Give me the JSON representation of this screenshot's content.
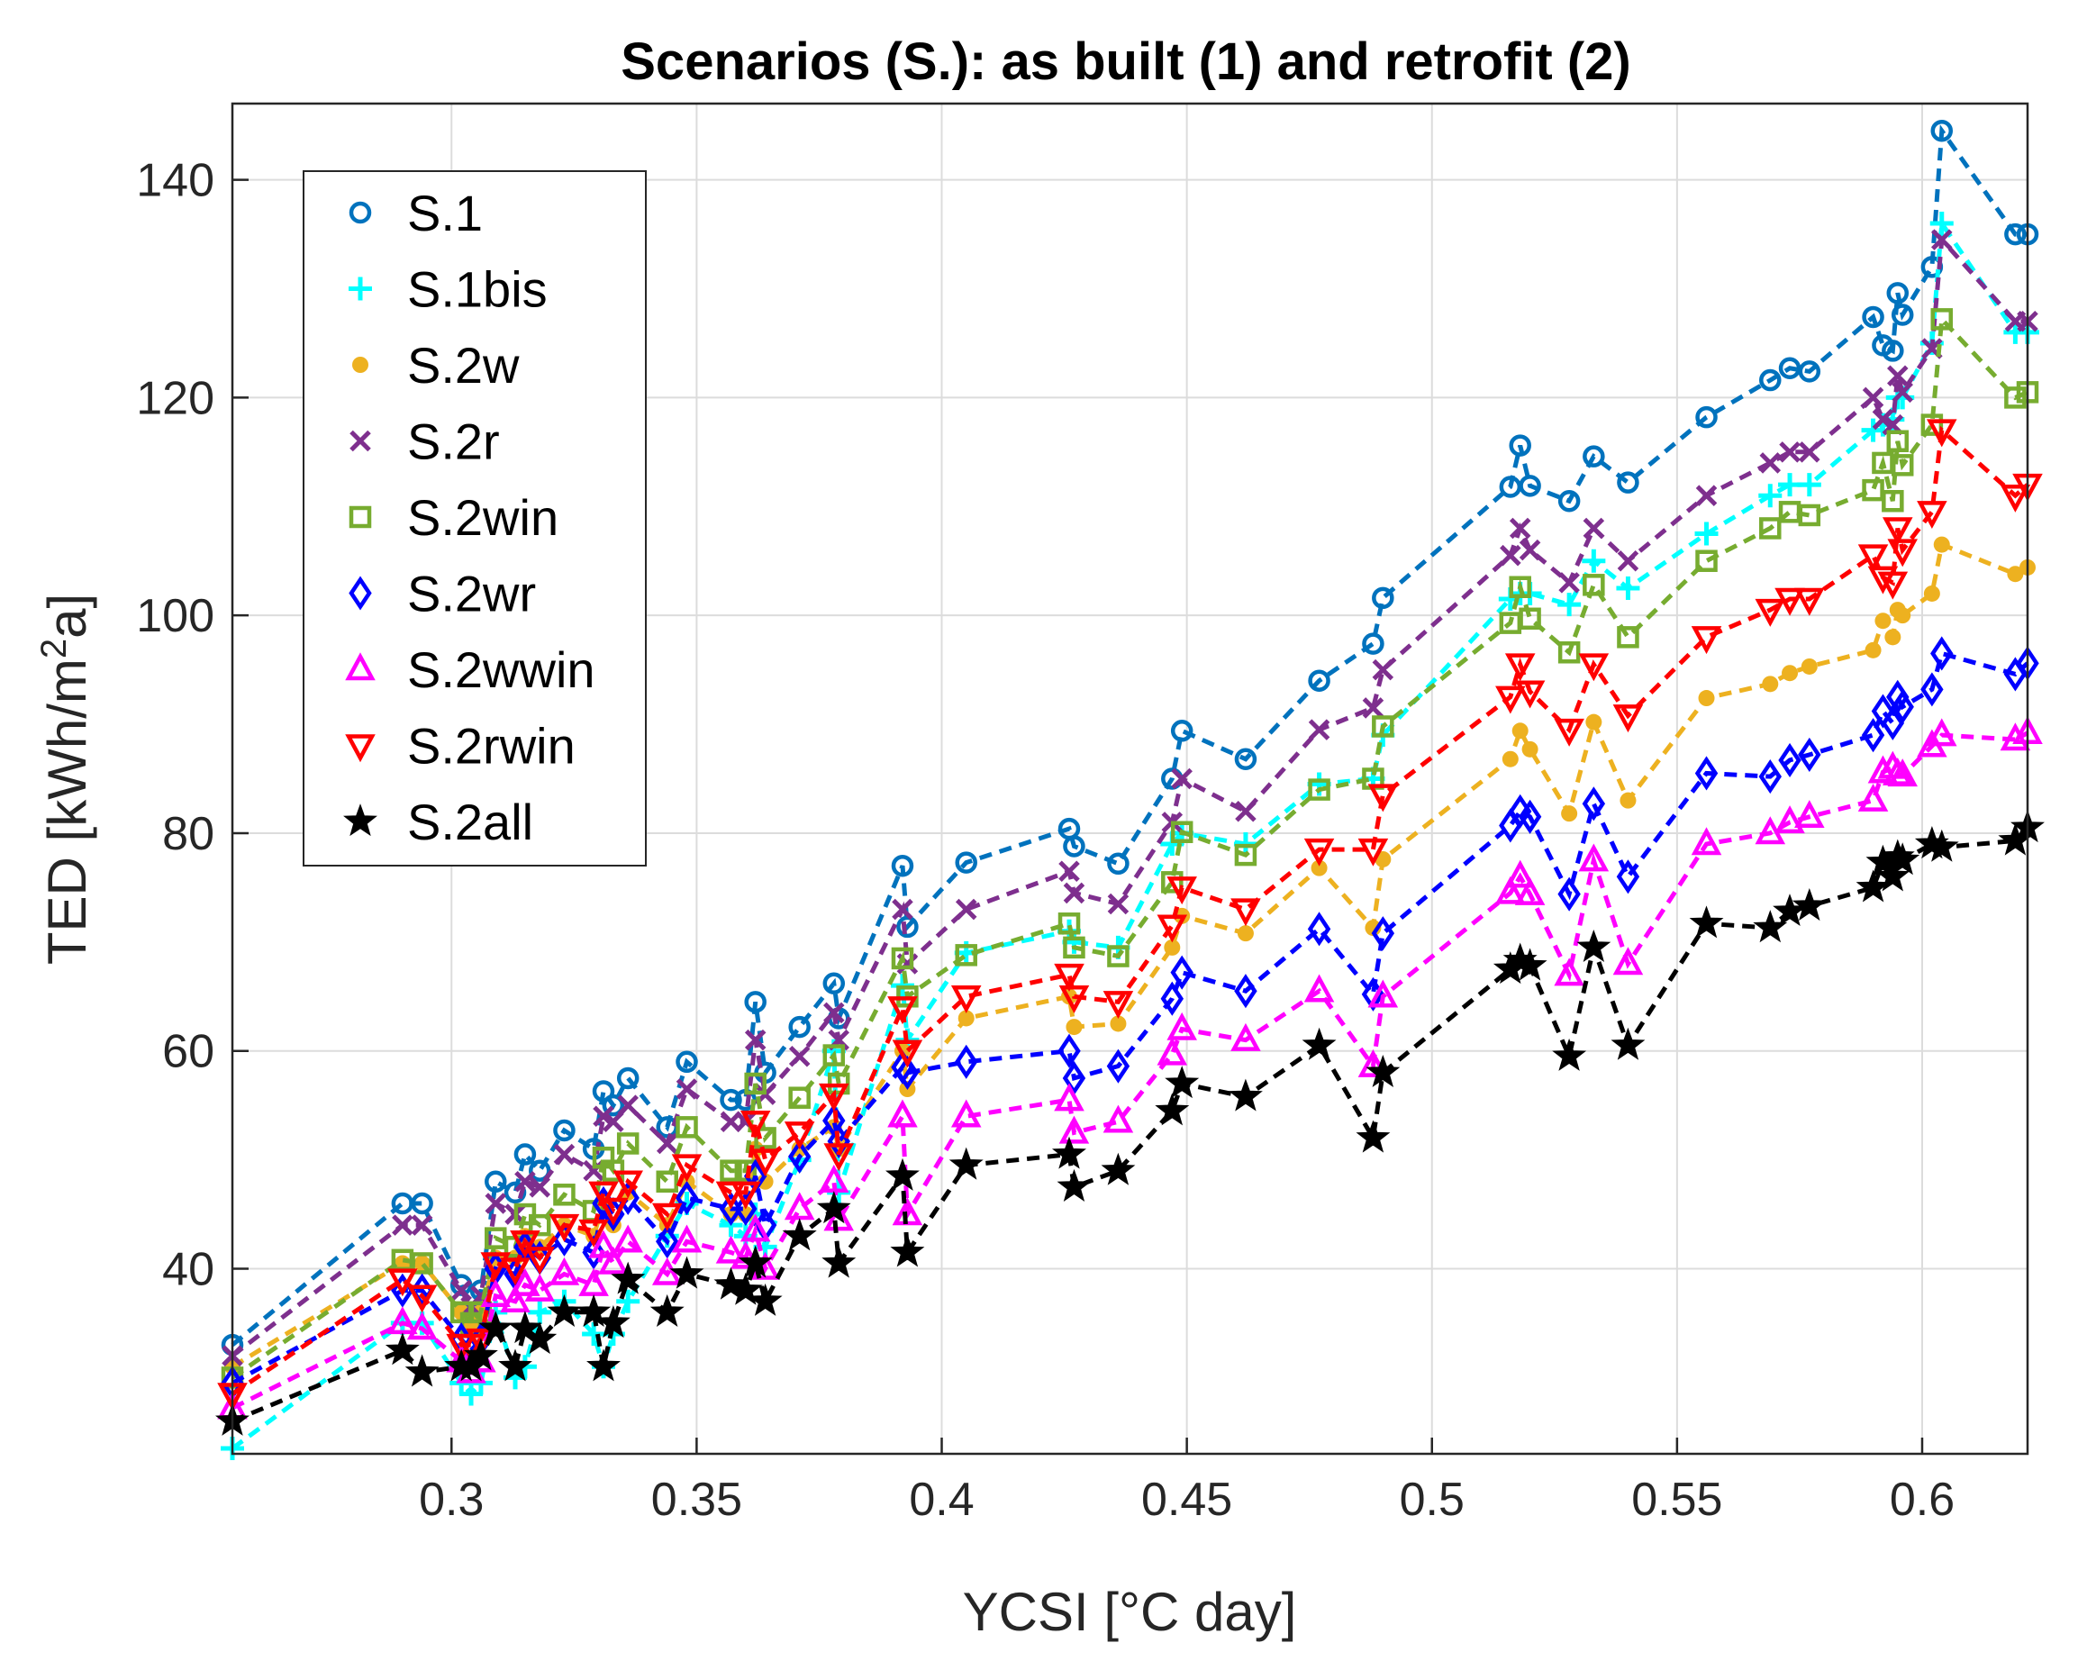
{
  "chart_data": {
    "type": "line",
    "title": "Scenarios (S.): as built (1) and retrofit (2)",
    "xlabel": "YCSI [°C day]",
    "ylabel_parts": {
      "main": "TED [kWh/m",
      "sup": "2",
      "tail": "a]"
    },
    "xlim": [
      0.2553,
      0.6215
    ],
    "ylim": [
      23,
      147
    ],
    "xticks": [
      0.3,
      0.35,
      0.4,
      0.45,
      0.5,
      0.55,
      0.6
    ],
    "xtick_labels": [
      "0.3",
      "0.35",
      "0.4",
      "0.45",
      "0.5",
      "0.55",
      "0.6"
    ],
    "yticks": [
      40,
      60,
      80,
      100,
      120,
      140
    ],
    "ytick_labels": [
      "40",
      "60",
      "80",
      "100",
      "120",
      "140"
    ],
    "grid": true,
    "legend_position": "top-left",
    "x": [
      0.2553,
      0.29,
      0.294,
      0.302,
      0.304,
      0.306,
      0.309,
      0.313,
      0.315,
      0.318,
      0.323,
      0.329,
      0.331,
      0.333,
      0.336,
      0.344,
      0.348,
      0.357,
      0.36,
      0.362,
      0.364,
      0.371,
      0.378,
      0.379,
      0.392,
      0.393,
      0.405,
      0.426,
      0.427,
      0.436,
      0.447,
      0.449,
      0.462,
      0.477,
      0.488,
      0.49,
      0.516,
      0.518,
      0.52,
      0.528,
      0.533,
      0.54,
      0.556,
      0.569,
      0.573,
      0.577,
      0.59,
      0.592,
      0.594,
      0.595,
      0.596,
      0.602,
      0.604,
      0.619,
      0.6215
    ],
    "series": [
      {
        "name": "S.1",
        "color": "#0072BD",
        "marker": "circle",
        "values": [
          33,
          46,
          46,
          38.5,
          36,
          38,
          48,
          47,
          50.5,
          49,
          52.7,
          51,
          56.3,
          55,
          57.5,
          53,
          59,
          55.5,
          55.5,
          64.5,
          58,
          62.2,
          66.2,
          63,
          77,
          71.4,
          77.3,
          80.4,
          78.8,
          77.2,
          85,
          89.4,
          86.8,
          94,
          97.4,
          101.6,
          111.8,
          115.6,
          111.9,
          110.5,
          114.6,
          112.2,
          118.2,
          121.6,
          122.7,
          122.4,
          127.4,
          124.8,
          124.3,
          129.6,
          127.6,
          132,
          144.5,
          135,
          135
        ]
      },
      {
        "name": "S.1bis",
        "color": "#00FFFF",
        "marker": "plus",
        "values": [
          23.5,
          35,
          35,
          29.5,
          28.5,
          29.5,
          36,
          30,
          31,
          36,
          37,
          34,
          31,
          34,
          37,
          43,
          46,
          44,
          43,
          45,
          42,
          50,
          60,
          47,
          66,
          61,
          69,
          71,
          70,
          69.5,
          79,
          80,
          79,
          84.5,
          85,
          89,
          101.5,
          102,
          102,
          101,
          105,
          102.5,
          107.5,
          111,
          112,
          112,
          117,
          117.5,
          118,
          120,
          120,
          125,
          136,
          126,
          126
        ]
      },
      {
        "name": "S.2w",
        "color": "#EDB120",
        "marker": "dot",
        "values": [
          31,
          40.5,
          40.5,
          36,
          35,
          36,
          41,
          41,
          43,
          42,
          44,
          43,
          46,
          44,
          47,
          44,
          48,
          45,
          45,
          51,
          48,
          51,
          53,
          51,
          60,
          56.5,
          63,
          65,
          62.2,
          62.5,
          69.5,
          72.4,
          70.8,
          76.8,
          71.3,
          77.6,
          86.8,
          89.4,
          87.7,
          81.8,
          90.2,
          83,
          92.4,
          93.7,
          94.7,
          95.3,
          96.8,
          99.5,
          98,
          100.5,
          100,
          102,
          106.5,
          103.8,
          104.4
        ]
      },
      {
        "name": "S.2r",
        "color": "#7E2F8E",
        "marker": "x",
        "values": [
          32,
          44,
          44,
          38,
          36.5,
          37.5,
          46,
          45,
          48,
          47.5,
          50.5,
          49,
          54,
          53.5,
          55,
          51.5,
          56.5,
          53.5,
          53.5,
          61,
          56,
          59.5,
          63.5,
          61,
          73,
          68,
          73,
          76.5,
          74.5,
          73.5,
          81,
          85,
          82,
          89.5,
          91.5,
          95,
          105.5,
          108,
          106,
          103,
          108,
          105,
          111,
          114,
          115,
          115,
          120,
          118,
          117.5,
          122,
          120.5,
          124.5,
          134.5,
          127,
          127
        ]
      },
      {
        "name": "S.2win",
        "color": "#77AC30",
        "marker": "square",
        "values": [
          30,
          40.8,
          40.5,
          36,
          35,
          36,
          42.8,
          42,
          45,
          44,
          46.8,
          45.3,
          50.2,
          49,
          51.5,
          48,
          53,
          49,
          49,
          57,
          52,
          55.7,
          59.6,
          57,
          68.5,
          65,
          68.8,
          71.7,
          69.5,
          68.7,
          75.5,
          80.1,
          78,
          84,
          85,
          89.8,
          99.3,
          102.6,
          99.7,
          96.6,
          102.8,
          98,
          105,
          108,
          109.5,
          109.2,
          111.5,
          114,
          110.5,
          116,
          113.8,
          117.5,
          127.2,
          120,
          120.5
        ]
      },
      {
        "name": "S.2wr",
        "color": "#0000FF",
        "marker": "diamond",
        "values": [
          29.5,
          38,
          38,
          33.5,
          32.5,
          33.5,
          40,
          39.5,
          42,
          41,
          42.7,
          41.5,
          46,
          45,
          46.5,
          42.5,
          46.5,
          45.5,
          45.5,
          48.5,
          44,
          50.3,
          53.6,
          51.7,
          58.5,
          58,
          59,
          60,
          57.5,
          58.6,
          64.8,
          67.2,
          65.5,
          71.2,
          65.2,
          70.8,
          80.7,
          82,
          81.5,
          74.4,
          82.7,
          76,
          85.5,
          85.2,
          86.7,
          87.2,
          89,
          91.2,
          90.1,
          92.5,
          91.6,
          93.2,
          96.5,
          94.6,
          95.6
        ]
      },
      {
        "name": "S.2wwin",
        "color": "#FF00FF",
        "marker": "triangle-up",
        "values": [
          27.2,
          35,
          34.5,
          31.5,
          30.5,
          31.5,
          37.5,
          37,
          38.5,
          38,
          39.5,
          38.5,
          42,
          40.5,
          42.5,
          39.5,
          42.5,
          41.5,
          41,
          43.5,
          40,
          45.5,
          48,
          44.5,
          54,
          45,
          54,
          55.5,
          52.5,
          53.5,
          59.7,
          62,
          61,
          65.5,
          58.6,
          65,
          74.5,
          76,
          74.4,
          67,
          77.5,
          68,
          79,
          80,
          81,
          81.5,
          83,
          85.6,
          86,
          85.4,
          85.3,
          88,
          89,
          88.6,
          89.2
        ]
      },
      {
        "name": "S.2rwin",
        "color": "#FF0000",
        "marker": "triangle-down",
        "values": [
          28.5,
          39,
          37.5,
          33,
          33,
          33.5,
          40.5,
          40,
          42.5,
          41,
          44,
          43.5,
          47,
          45.5,
          48,
          45,
          49.5,
          47,
          47,
          53.5,
          50,
          52.5,
          56,
          50.5,
          64,
          60,
          65,
          67,
          65,
          64.5,
          71.5,
          75,
          73,
          78.5,
          78.5,
          83.5,
          92.5,
          95.5,
          93,
          89.5,
          95.5,
          90.8,
          98,
          100.5,
          101.5,
          101.5,
          105.5,
          103.5,
          103,
          108,
          106,
          109.5,
          117,
          111,
          112
        ]
      },
      {
        "name": "S.2all",
        "color": "#000000",
        "marker": "star",
        "values": [
          26,
          32.5,
          30.5,
          31,
          31,
          32,
          34.5,
          31,
          34.5,
          33.5,
          36,
          36,
          31,
          35,
          39,
          36,
          39.5,
          38.5,
          38,
          40.5,
          37,
          43,
          45.5,
          40.5,
          48.5,
          41.5,
          49.5,
          50.5,
          47.5,
          49,
          54.5,
          57,
          55.8,
          60.5,
          52,
          58,
          67.5,
          68.3,
          67.8,
          59.5,
          69.5,
          60.5,
          71.7,
          71.3,
          72.8,
          73.3,
          75,
          77.3,
          76,
          77.8,
          77.5,
          79,
          78.7,
          79.3,
          80.5
        ]
      }
    ]
  }
}
